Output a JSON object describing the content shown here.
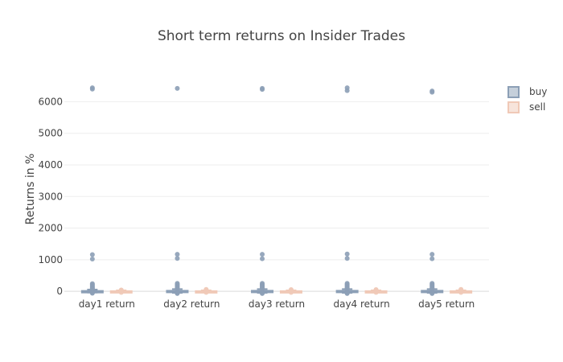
{
  "chart_data": {
    "type": "box",
    "title": "Short term returns on Insider Trades",
    "xlabel": "",
    "ylabel": "Returns in %",
    "categories": [
      "day1 return",
      "day2 return",
      "day3 return",
      "day4 return",
      "day5 return"
    ],
    "ylim": [
      -150,
      6800
    ],
    "y_ticks": [
      0,
      1000,
      2000,
      3000,
      4000,
      5000,
      6000
    ],
    "y_tick_labels": [
      "0",
      "1000",
      "2000",
      "3000",
      "4000",
      "5000",
      "6000"
    ],
    "grid": true,
    "legend_position": "top-right",
    "series": [
      {
        "name": "buy",
        "color": "#8c9fb6",
        "boxes": [
          {
            "q1": -8,
            "median": 2,
            "q3": 12,
            "whisker_low": -40,
            "whisker_high": 55,
            "outliers": [
              6440,
              6400,
              1160,
              1020,
              240,
              210,
              180,
              150,
              120,
              95,
              75,
              60,
              -45,
              -60
            ]
          },
          {
            "q1": -10,
            "median": 2,
            "q3": 18,
            "whisker_low": -50,
            "whisker_high": 70,
            "outliers": [
              6420,
              1170,
              1040,
              250,
              220,
              190,
              160,
              130,
              100,
              80,
              -55,
              -70
            ]
          },
          {
            "q1": -10,
            "median": 2,
            "q3": 18,
            "whisker_low": -50,
            "whisker_high": 70,
            "outliers": [
              6420,
              6390,
              1170,
              1030,
              250,
              220,
              190,
              160,
              130,
              100,
              80,
              -55,
              -70
            ]
          },
          {
            "q1": -10,
            "median": 2,
            "q3": 18,
            "whisker_low": -50,
            "whisker_high": 70,
            "outliers": [
              6440,
              6350,
              1180,
              1040,
              250,
              220,
              190,
              160,
              130,
              100,
              80,
              -55,
              -70
            ]
          },
          {
            "q1": -10,
            "median": 2,
            "q3": 18,
            "whisker_low": -50,
            "whisker_high": 70,
            "outliers": [
              6340,
              6300,
              1170,
              1030,
              250,
              220,
              190,
              160,
              130,
              100,
              80,
              -55,
              -70
            ]
          }
        ]
      },
      {
        "name": "sell",
        "color": "#f0c9b7",
        "boxes": [
          {
            "q1": -6,
            "median": 0,
            "q3": 6,
            "whisker_low": -30,
            "whisker_high": 30,
            "outliers": [
              40,
              35,
              -35
            ]
          },
          {
            "q1": -6,
            "median": 0,
            "q3": 6,
            "whisker_low": -30,
            "whisker_high": 30,
            "outliers": [
              60,
              45,
              -35
            ]
          },
          {
            "q1": -6,
            "median": 0,
            "q3": 6,
            "whisker_low": -30,
            "whisker_high": 30,
            "outliers": [
              55,
              40,
              -35
            ]
          },
          {
            "q1": -6,
            "median": 0,
            "q3": 6,
            "whisker_low": -30,
            "whisker_high": 30,
            "outliers": [
              55,
              40,
              -35
            ]
          },
          {
            "q1": -6,
            "median": 0,
            "q3": 6,
            "whisker_low": -30,
            "whisker_high": 30,
            "outliers": [
              60,
              45,
              -35
            ]
          }
        ]
      }
    ]
  }
}
